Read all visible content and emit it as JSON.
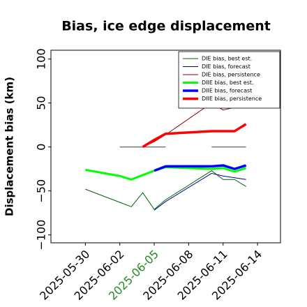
{
  "chart_data": {
    "type": "line",
    "title": "Bias, ice edge displacement",
    "y_label": "Displacement bias (km)",
    "xlim": [
      "2025-05-27",
      "2025-06-16"
    ],
    "xticks": [
      "2025-05-30",
      "2025-06-02",
      "2025-06-05",
      "2025-06-08",
      "2025-06-11",
      "2025-06-14"
    ],
    "ylim": [
      -109,
      110
    ],
    "yticks": [
      {
        "value": -100,
        "label": "−100"
      },
      {
        "value": -50,
        "label": "−50"
      },
      0,
      50,
      100
    ],
    "legend": "upper right",
    "hlines": [
      {
        "y": 0,
        "color": "#777777",
        "xmin": "2025-06-02",
        "xmax": "2025-06-06"
      },
      {
        "y": 0,
        "color": "#777777",
        "xmin": "2025-06-10",
        "xmax": "2025-06-13"
      }
    ],
    "series": [
      {
        "name": "DIE bias, best est.",
        "color": "#006400",
        "width": 1,
        "x": [
          "2025-05-30",
          "2025-06-02",
          "2025-06-03",
          "2025-06-04",
          "2025-06-05",
          "2025-06-06",
          "2025-06-10",
          "2025-06-11",
          "2025-06-12",
          "2025-06-13"
        ],
        "values": [
          -48,
          -63,
          -68,
          -52,
          -71,
          -60,
          -27,
          -37,
          -37,
          -45
        ]
      },
      {
        "name": "DIE bias, forecast",
        "color": "#00008b",
        "width": 1,
        "x": [
          "2025-06-05",
          "2025-06-06",
          "2025-06-10",
          "2025-06-11",
          "2025-06-12",
          "2025-06-13"
        ],
        "values": [
          -72,
          -62,
          -30,
          -33,
          -35,
          -37
        ]
      },
      {
        "name": "DIE bias, persistence",
        "color": "#8b0000",
        "width": 1,
        "x": [
          "2025-06-04",
          "2025-06-05",
          "2025-06-06",
          "2025-06-10",
          "2025-06-11",
          "2025-06-12"
        ],
        "values": [
          0,
          6,
          14,
          50,
          42,
          45
        ]
      },
      {
        "name": "DIIE bias, best est.",
        "color": "#00ff00",
        "width": 3,
        "x": [
          "2025-05-30",
          "2025-06-02",
          "2025-06-03",
          "2025-06-04",
          "2025-06-05",
          "2025-06-06",
          "2025-06-10",
          "2025-06-11",
          "2025-06-12",
          "2025-06-13"
        ],
        "values": [
          -26,
          -33,
          -37,
          -32,
          -27,
          -23,
          -25,
          -24,
          -28,
          -24
        ]
      },
      {
        "name": "DIIE bias, forecast",
        "color": "#0000ff",
        "width": 3.5,
        "x": [
          "2025-06-05",
          "2025-06-06",
          "2025-06-10",
          "2025-06-11",
          "2025-06-12",
          "2025-06-13"
        ],
        "values": [
          -27,
          -22,
          -22,
          -21,
          -25,
          -21
        ]
      },
      {
        "name": "DIIE bias, persistence",
        "color": "#ff0000",
        "width": 3.5,
        "x": [
          "2025-06-04",
          "2025-06-05",
          "2025-06-06",
          "2025-06-10",
          "2025-06-11",
          "2025-06-12",
          "2025-06-13"
        ],
        "values": [
          0,
          8,
          15,
          18,
          18,
          18,
          26
        ]
      }
    ]
  }
}
